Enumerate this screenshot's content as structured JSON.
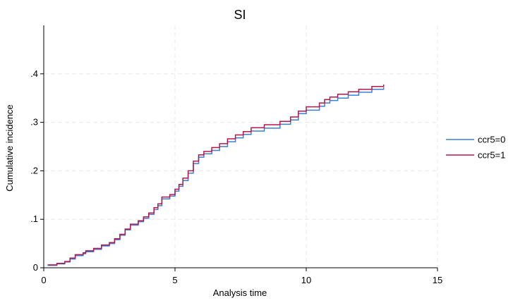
{
  "chart_data": {
    "type": "line",
    "step": true,
    "title": "SI",
    "xlabel": "Analysis time",
    "ylabel": "Cumulative incidence",
    "xlim": [
      0,
      15
    ],
    "ylim": [
      0,
      0.5
    ],
    "xticks": [
      {
        "value": 0,
        "label": "0"
      },
      {
        "value": 5,
        "label": "5"
      },
      {
        "value": 10,
        "label": "10"
      },
      {
        "value": 15,
        "label": "15"
      }
    ],
    "yticks": [
      {
        "value": 0,
        "label": "0"
      },
      {
        "value": 0.1,
        "label": ".1"
      },
      {
        "value": 0.2,
        "label": ".2"
      },
      {
        "value": 0.3,
        "label": ".3"
      },
      {
        "value": 0.4,
        "label": ".4"
      }
    ],
    "grid": true,
    "legend_position": "right",
    "series": [
      {
        "name": "ccr5=0",
        "color": "#3a7fd5",
        "x": [
          0.15,
          0.5,
          0.8,
          1.0,
          1.2,
          1.5,
          1.6,
          1.9,
          2.2,
          2.5,
          2.7,
          2.9,
          3.1,
          3.3,
          3.6,
          3.8,
          4.0,
          4.2,
          4.35,
          4.5,
          4.8,
          5.0,
          5.15,
          5.3,
          5.5,
          5.7,
          5.9,
          6.1,
          6.4,
          6.7,
          7.0,
          7.3,
          7.6,
          7.9,
          8.4,
          9.0,
          9.4,
          9.7,
          10.0,
          10.5,
          10.7,
          10.9,
          11.2,
          11.6,
          12.0,
          12.5,
          12.95
        ],
        "y": [
          0.005,
          0.008,
          0.012,
          0.018,
          0.025,
          0.029,
          0.033,
          0.038,
          0.045,
          0.05,
          0.058,
          0.067,
          0.078,
          0.088,
          0.095,
          0.102,
          0.11,
          0.12,
          0.128,
          0.142,
          0.148,
          0.158,
          0.168,
          0.18,
          0.195,
          0.215,
          0.228,
          0.235,
          0.242,
          0.25,
          0.26,
          0.268,
          0.275,
          0.282,
          0.288,
          0.296,
          0.305,
          0.318,
          0.325,
          0.333,
          0.34,
          0.345,
          0.35,
          0.356,
          0.362,
          0.368,
          0.372
        ]
      },
      {
        "name": "ccr5=1",
        "color": "#b5174d",
        "x": [
          0.15,
          0.5,
          0.8,
          1.0,
          1.2,
          1.5,
          1.6,
          1.9,
          2.2,
          2.5,
          2.7,
          2.9,
          3.1,
          3.3,
          3.6,
          3.8,
          4.0,
          4.2,
          4.35,
          4.5,
          4.8,
          5.0,
          5.15,
          5.3,
          5.5,
          5.7,
          5.9,
          6.1,
          6.4,
          6.7,
          7.0,
          7.3,
          7.6,
          7.9,
          8.4,
          9.0,
          9.4,
          9.7,
          10.0,
          10.5,
          10.7,
          10.9,
          11.2,
          11.6,
          12.0,
          12.5,
          12.95
        ],
        "y": [
          0.006,
          0.009,
          0.013,
          0.02,
          0.027,
          0.031,
          0.035,
          0.04,
          0.047,
          0.052,
          0.06,
          0.069,
          0.08,
          0.09,
          0.097,
          0.105,
          0.113,
          0.124,
          0.132,
          0.146,
          0.151,
          0.162,
          0.172,
          0.185,
          0.2,
          0.22,
          0.233,
          0.24,
          0.248,
          0.256,
          0.266,
          0.274,
          0.281,
          0.289,
          0.295,
          0.302,
          0.311,
          0.323,
          0.332,
          0.34,
          0.347,
          0.352,
          0.358,
          0.363,
          0.368,
          0.374,
          0.378
        ]
      }
    ]
  }
}
